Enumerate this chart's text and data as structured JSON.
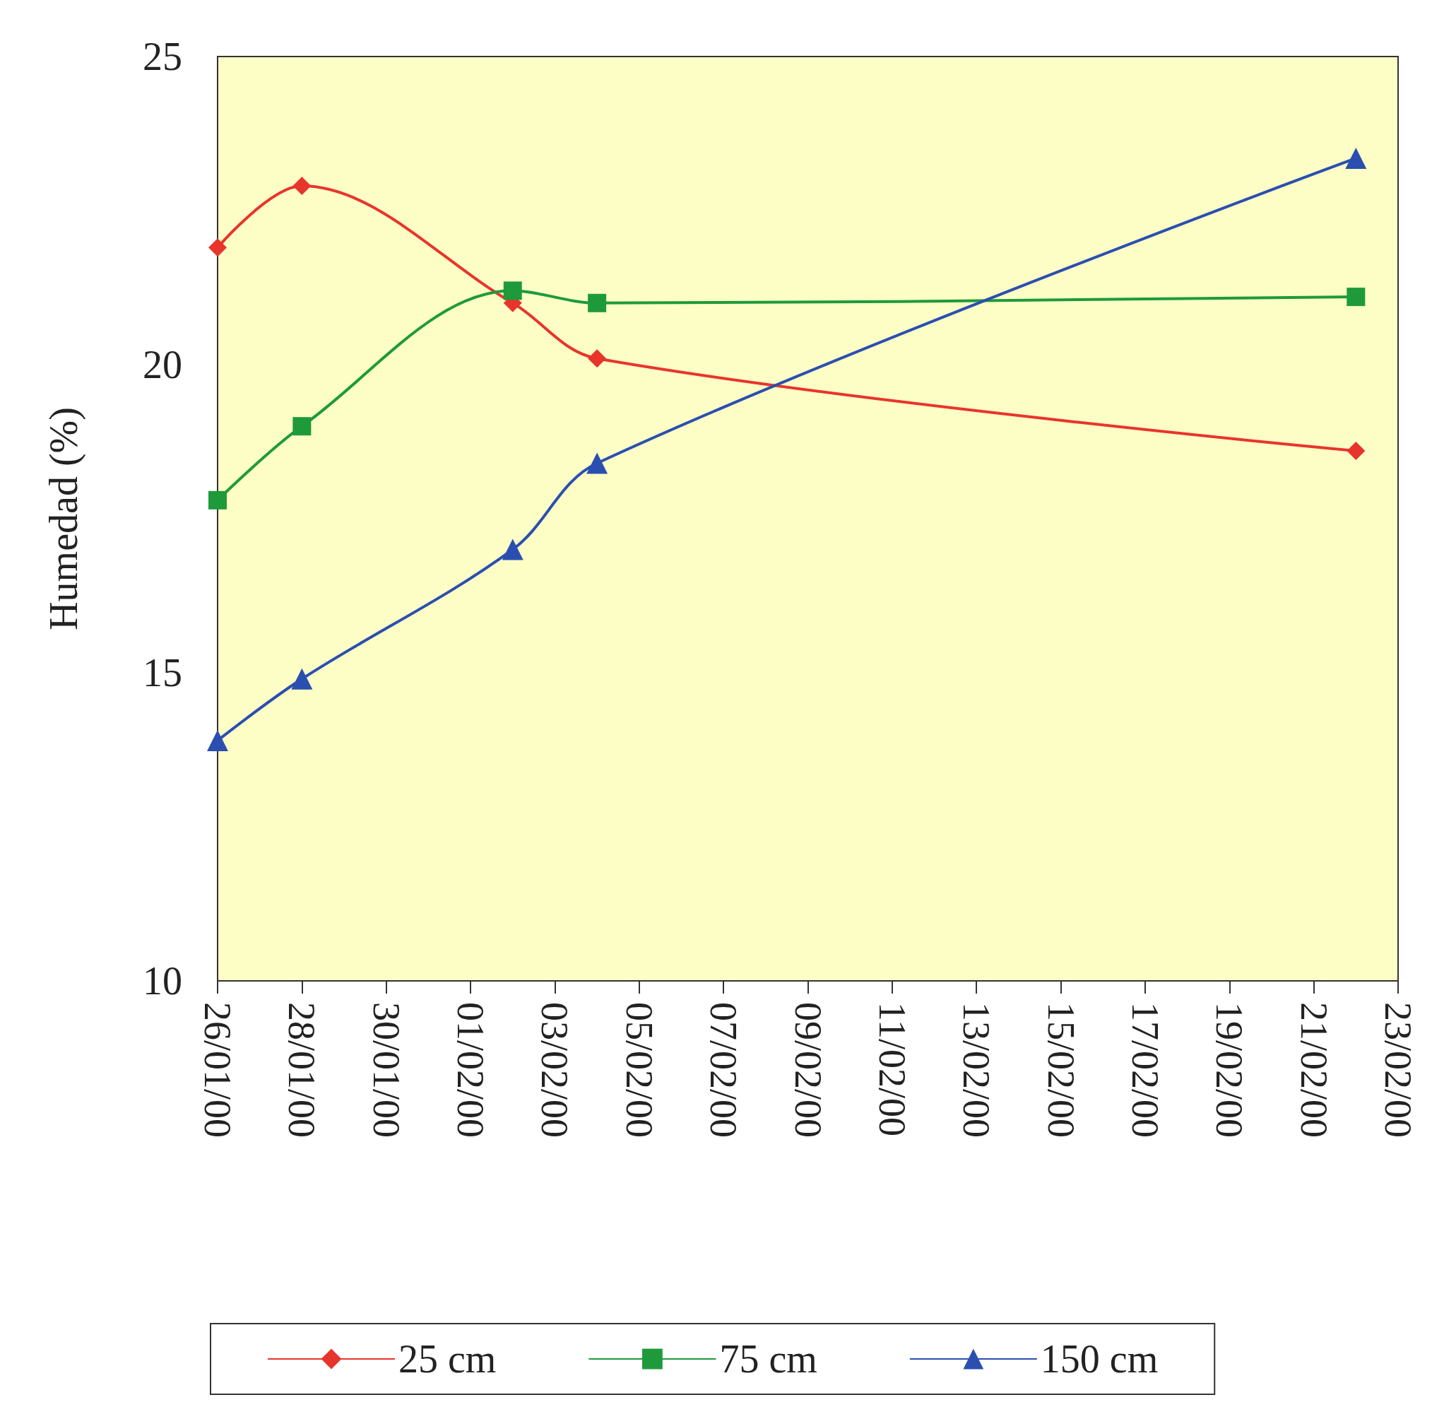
{
  "chart_data": {
    "type": "line",
    "ylabel": "Humedad (%)",
    "x": [
      "2000-01-26",
      "2000-01-28",
      "2000-02-02",
      "2000-02-04",
      "2000-02-22"
    ],
    "series": [
      {
        "name": "25 cm",
        "color": "#e8352b",
        "marker": "diamond",
        "values": [
          21.9,
          22.9,
          21.0,
          20.1,
          18.6
        ]
      },
      {
        "name": "75 cm",
        "color": "#1e9a3a",
        "marker": "square",
        "values": [
          17.8,
          19.0,
          21.2,
          21.0,
          21.1
        ]
      },
      {
        "name": "150 cm",
        "color": "#2a4fb0",
        "marker": "triangle",
        "values": [
          13.9,
          14.9,
          17.0,
          18.4,
          23.35
        ]
      }
    ],
    "xlim": [
      "2000-01-26",
      "2000-02-23"
    ],
    "xticks": [
      {
        "value": "2000-01-26",
        "label": "26/01/00"
      },
      {
        "value": "2000-01-28",
        "label": "28/01/00"
      },
      {
        "value": "2000-01-30",
        "label": "30/01/00"
      },
      {
        "value": "2000-02-01",
        "label": "01/02/00"
      },
      {
        "value": "2000-02-03",
        "label": "03/02/00"
      },
      {
        "value": "2000-02-05",
        "label": "05/02/00"
      },
      {
        "value": "2000-02-07",
        "label": "07/02/00"
      },
      {
        "value": "2000-02-09",
        "label": "09/02/00"
      },
      {
        "value": "2000-02-11",
        "label": "11/02/00"
      },
      {
        "value": "2000-02-13",
        "label": "13/02/00"
      },
      {
        "value": "2000-02-15",
        "label": "15/02/00"
      },
      {
        "value": "2000-02-17",
        "label": "17/02/00"
      },
      {
        "value": "2000-02-19",
        "label": "19/02/00"
      },
      {
        "value": "2000-02-21",
        "label": "21/02/00"
      },
      {
        "value": "2000-02-23",
        "label": "23/02/00"
      }
    ],
    "ylim": [
      10,
      25
    ],
    "yticks": [
      10,
      15,
      20,
      25
    ],
    "grid": false,
    "legend": "bottom",
    "line_style": "solid"
  }
}
